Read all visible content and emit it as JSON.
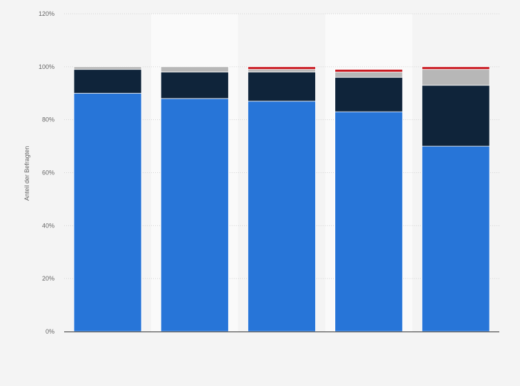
{
  "chart_data": {
    "type": "bar",
    "stacked": true,
    "ylabel": "Anteil der Befragten",
    "xlabel": "",
    "ylim": [
      0,
      120
    ],
    "yticks": [
      "0%",
      "20%",
      "40%",
      "60%",
      "80%",
      "100%",
      "120%"
    ],
    "categories": [
      "",
      "",
      "",
      "",
      ""
    ],
    "grid": true,
    "series": [
      {
        "values": [
          90,
          88,
          87,
          83,
          70
        ],
        "color": "#2775d8"
      },
      {
        "values": [
          9,
          10,
          11,
          13,
          23
        ],
        "color": "#0f243a"
      },
      {
        "values": [
          1,
          2,
          1,
          2,
          6
        ],
        "color": "#b7b7b7"
      },
      {
        "values": [
          0,
          0,
          1,
          1,
          1
        ],
        "color": "#c8161d"
      }
    ]
  }
}
